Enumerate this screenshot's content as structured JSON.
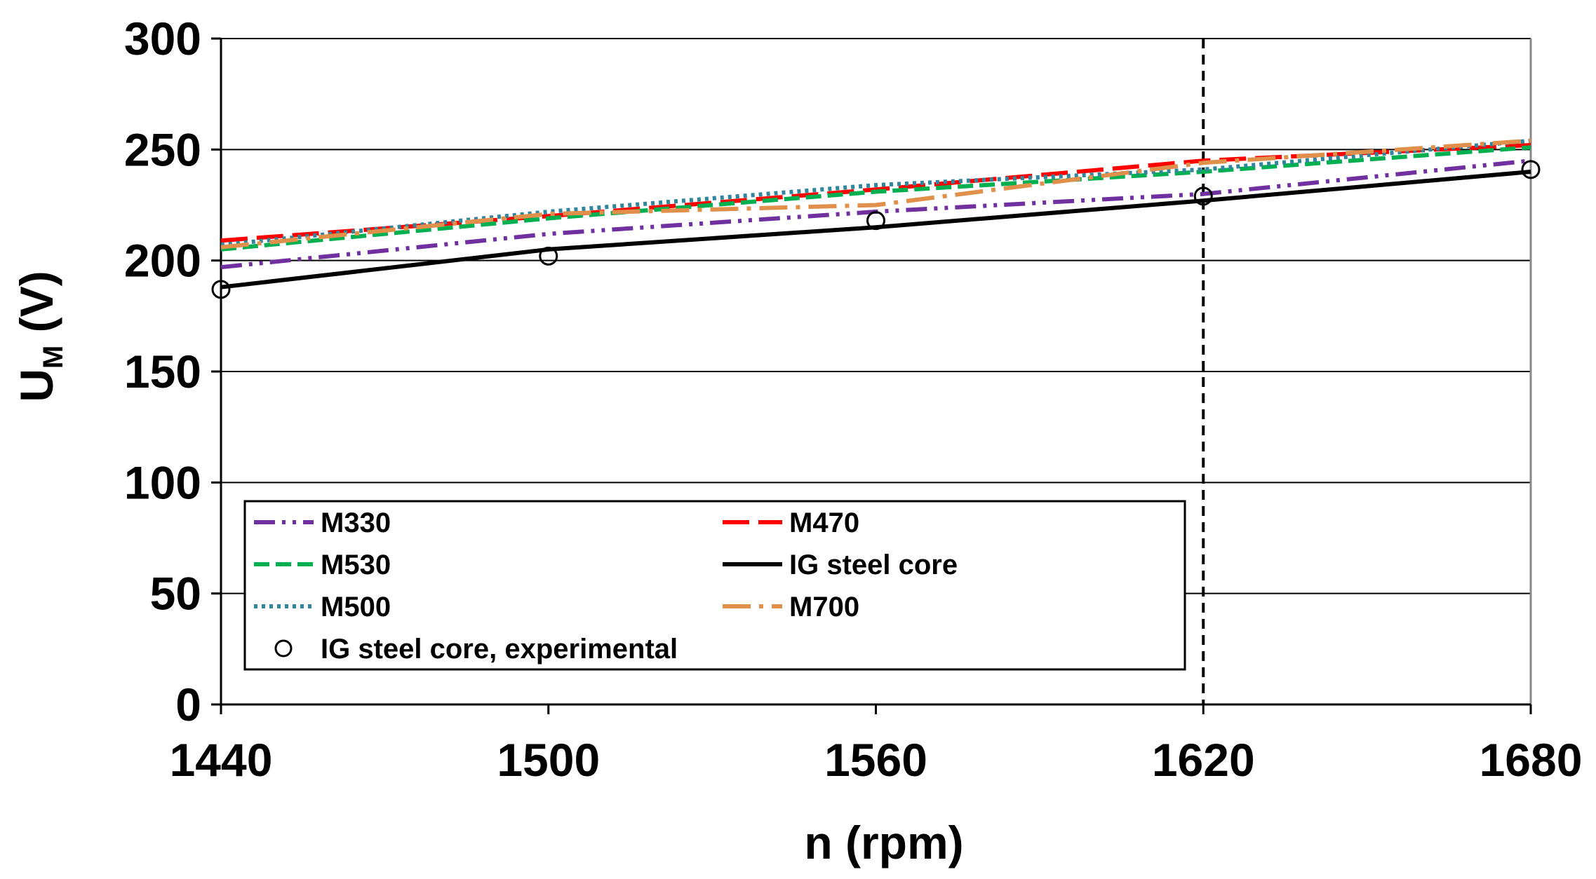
{
  "chart_data": {
    "type": "line",
    "title": "",
    "xlabel": "n (rpm)",
    "ylabel_main": "U",
    "ylabel_sub": "M",
    "ylabel_unit": " (V)",
    "xlim": [
      1440,
      1680
    ],
    "ylim": [
      0,
      300
    ],
    "x_ticks": [
      1440,
      1500,
      1560,
      1620,
      1680
    ],
    "y_ticks": [
      0,
      50,
      100,
      150,
      200,
      250,
      300
    ],
    "grid": "horizontal",
    "reference_line_x": 1620,
    "legend_position": "lower-middle",
    "series": [
      {
        "name": "M330",
        "color": "#7030A0",
        "style": "dash-dot-dot",
        "x": [
          1440,
          1500,
          1560,
          1620,
          1680
        ],
        "values": [
          197,
          212,
          222,
          230,
          245
        ]
      },
      {
        "name": "M470",
        "color": "#FF0000",
        "style": "long-dash",
        "x": [
          1440,
          1500,
          1560,
          1620,
          1680
        ],
        "values": [
          209,
          220,
          232,
          245,
          252
        ]
      },
      {
        "name": "M530",
        "color": "#00B050",
        "style": "dash",
        "x": [
          1440,
          1500,
          1560,
          1620,
          1680
        ],
        "values": [
          205,
          219,
          231,
          240,
          251
        ]
      },
      {
        "name": "IG steel core",
        "color": "#000000",
        "style": "solid",
        "x": [
          1440,
          1500,
          1560,
          1620,
          1680
        ],
        "values": [
          188,
          205,
          215,
          227,
          240
        ]
      },
      {
        "name": "M500",
        "color": "#31859C",
        "style": "dot",
        "x": [
          1440,
          1500,
          1560,
          1620,
          1680
        ],
        "values": [
          207,
          222,
          234,
          241,
          254
        ]
      },
      {
        "name": "M700",
        "color": "#E0904A",
        "style": "long-dash-dot",
        "x": [
          1440,
          1500,
          1560,
          1620,
          1680
        ],
        "values": [
          206,
          221,
          225,
          244,
          254
        ]
      }
    ],
    "experimental": {
      "name": "IG steel core, experimental",
      "marker": "circle-open",
      "x": [
        1440,
        1500,
        1560,
        1620,
        1680
      ],
      "values": [
        187,
        202,
        218,
        229,
        241
      ]
    },
    "legend_order": [
      "M330",
      "M470",
      "M530",
      "IG steel core",
      "M500",
      "M700",
      "IG steel core, experimental"
    ]
  }
}
